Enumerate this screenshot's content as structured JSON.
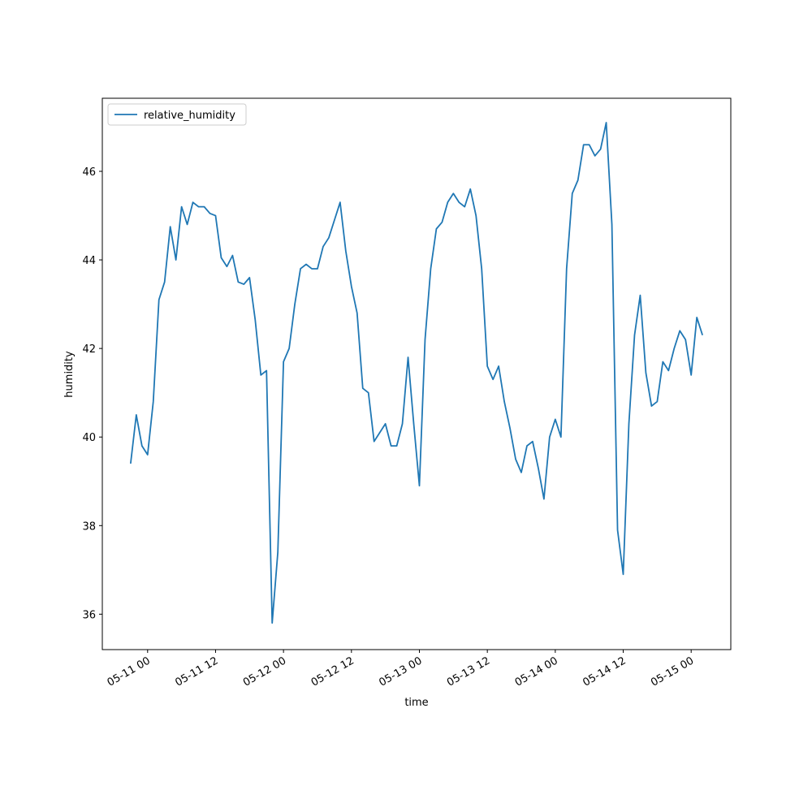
{
  "chart_data": {
    "type": "line",
    "x_label": "time",
    "y_label": "humidity",
    "legend": "upper left",
    "x": [
      "05-10 21",
      "05-10 22",
      "05-10 23",
      "05-11 00",
      "05-11 01",
      "05-11 02",
      "05-11 03",
      "05-11 04",
      "05-11 05",
      "05-11 06",
      "05-11 07",
      "05-11 08",
      "05-11 09",
      "05-11 10",
      "05-11 11",
      "05-11 12",
      "05-11 13",
      "05-11 14",
      "05-11 15",
      "05-11 16",
      "05-11 17",
      "05-11 18",
      "05-11 19",
      "05-11 20",
      "05-11 21",
      "05-11 22",
      "05-11 23",
      "05-12 00",
      "05-12 01",
      "05-12 02",
      "05-12 03",
      "05-12 04",
      "05-12 05",
      "05-12 06",
      "05-12 07",
      "05-12 08",
      "05-12 09",
      "05-12 10",
      "05-12 11",
      "05-12 12",
      "05-12 13",
      "05-12 14",
      "05-12 15",
      "05-12 16",
      "05-12 17",
      "05-12 18",
      "05-12 19",
      "05-12 20",
      "05-12 21",
      "05-12 22",
      "05-12 23",
      "05-13 00",
      "05-13 01",
      "05-13 02",
      "05-13 03",
      "05-13 04",
      "05-13 05",
      "05-13 06",
      "05-13 07",
      "05-13 08",
      "05-13 09",
      "05-13 10",
      "05-13 11",
      "05-13 12",
      "05-13 13",
      "05-13 14",
      "05-13 15",
      "05-13 16",
      "05-13 17",
      "05-13 18",
      "05-13 19",
      "05-13 20",
      "05-13 21",
      "05-13 22",
      "05-13 23",
      "05-14 00",
      "05-14 01",
      "05-14 02",
      "05-14 03",
      "05-14 04",
      "05-14 05",
      "05-14 06",
      "05-14 07",
      "05-14 08",
      "05-14 09",
      "05-14 10",
      "05-14 11",
      "05-14 12",
      "05-14 13",
      "05-14 14",
      "05-14 15",
      "05-14 16",
      "05-14 17",
      "05-14 18",
      "05-14 19",
      "05-14 20",
      "05-14 21",
      "05-14 22",
      "05-14 23",
      "05-15 00",
      "05-15 01",
      "05-15 02"
    ],
    "series": [
      {
        "name": "relative_humidity",
        "color": "#1f77b4",
        "values": [
          39.4,
          40.5,
          39.8,
          39.6,
          40.8,
          43.1,
          43.5,
          44.75,
          44.0,
          45.2,
          44.8,
          45.3,
          45.2,
          45.2,
          45.05,
          45.0,
          44.05,
          43.85,
          44.1,
          43.5,
          43.45,
          43.6,
          42.65,
          41.4,
          41.5,
          35.8,
          37.4,
          41.7,
          42.0,
          43.0,
          43.8,
          43.9,
          43.8,
          43.8,
          44.3,
          44.5,
          44.9,
          45.3,
          44.2,
          43.4,
          42.8,
          41.1,
          41.0,
          39.9,
          40.1,
          40.3,
          39.8,
          39.8,
          40.3,
          41.8,
          40.3,
          38.9,
          42.2,
          43.8,
          44.7,
          44.85,
          45.3,
          45.5,
          45.3,
          45.2,
          45.6,
          45.0,
          43.8,
          41.6,
          41.3,
          41.6,
          40.8,
          40.2,
          39.5,
          39.2,
          39.8,
          39.9,
          39.3,
          38.6,
          40.0,
          40.4,
          40.0,
          43.8,
          45.5,
          45.8,
          46.6,
          46.6,
          46.35,
          46.5,
          47.1,
          44.8,
          37.9,
          36.9,
          40.3,
          42.3,
          43.2,
          41.45,
          40.7,
          40.8,
          41.7,
          41.5,
          42.0,
          42.4,
          42.2,
          41.4,
          42.7,
          42.3
        ]
      }
    ],
    "xlim": [
      "05-10 16",
      "05-15 07"
    ],
    "xticks": [
      "05-11 00",
      "05-11 12",
      "05-12 00",
      "05-12 12",
      "05-13 00",
      "05-13 12",
      "05-14 00",
      "05-14 12",
      "05-15 00"
    ],
    "ylim": [
      35.2,
      47.65
    ],
    "yticks": [
      36,
      38,
      40,
      42,
      44,
      46
    ]
  }
}
